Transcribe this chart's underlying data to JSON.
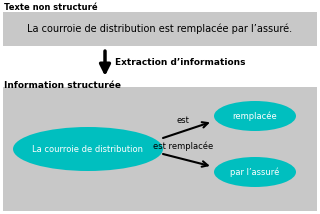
{
  "bg_color": "#ffffff",
  "gray_light": "#c8c8c8",
  "teal": "#00bfbf",
  "text_color": "#000000",
  "title_top": "Texte non structuré",
  "sentence": "La courroie de distribution est remplacée par l’assuré.",
  "arrow_label": "Extraction d’informations",
  "title_bottom": "Information structurée",
  "node_left": "La courroie de distribution",
  "node_top_right": "remplacée",
  "node_bottom_right": "par l’assuré",
  "edge_top": "est",
  "edge_bottom": "est remplacée",
  "figw": 3.2,
  "figh": 2.14,
  "dpi": 100
}
